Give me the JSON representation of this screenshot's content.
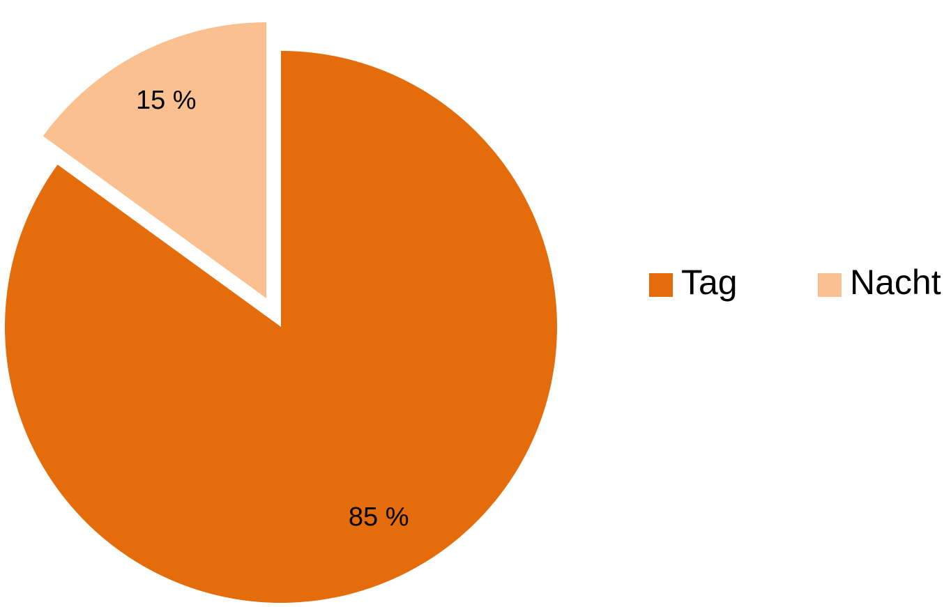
{
  "chart_data": {
    "type": "pie",
    "categories": [
      "Tag",
      "Nacht"
    ],
    "values": [
      85,
      15
    ],
    "data_labels": [
      "85 %",
      "15 %"
    ],
    "colors": [
      "#E46C0A",
      "#FAC090"
    ],
    "exploded": [
      false,
      true
    ],
    "legend": {
      "position": "right",
      "entries": [
        "Tag",
        "Nacht"
      ]
    },
    "start_angle_deg": 0,
    "direction": "clockwise"
  }
}
